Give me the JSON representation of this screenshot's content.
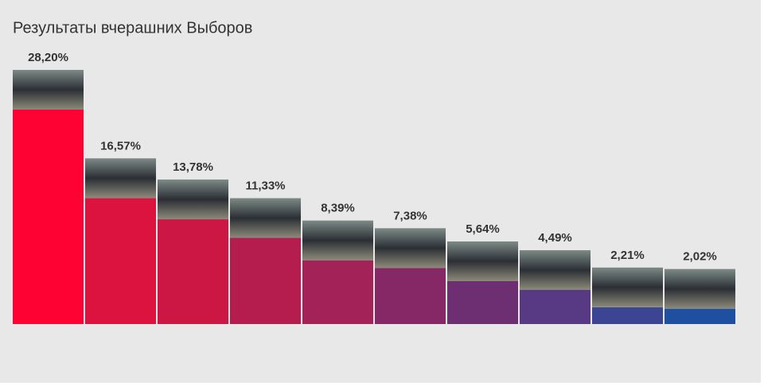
{
  "chart_data": {
    "type": "bar",
    "title": "Результаты вчерашних Выборов",
    "categories": [
      null,
      null,
      null,
      null,
      null,
      null,
      null,
      null,
      null,
      null
    ],
    "values": [
      28.2,
      16.57,
      13.78,
      11.33,
      8.39,
      7.38,
      5.64,
      4.49,
      2.21,
      2.02
    ],
    "value_labels": [
      "28,20%",
      "16,57%",
      "13,78%",
      "11,33%",
      "8,39%",
      "7,38%",
      "5,64%",
      "4,49%",
      "2,21%",
      "2,02%"
    ],
    "colors": [
      "#fd0233",
      "#dc123f",
      "#cc1744",
      "#b51d4f",
      "#a32257",
      "#862766",
      "#6e2f72",
      "#583a84",
      "#3b4592",
      "#1f4fa0"
    ]
  }
}
